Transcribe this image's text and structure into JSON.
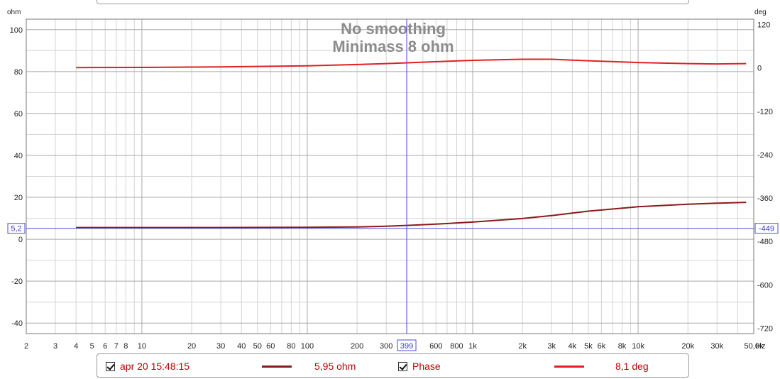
{
  "chart_data": {
    "type": "line",
    "title": "No smoothing",
    "subtitle": "Minimass 8 ohm",
    "x_scale": "log",
    "xlim": [
      2,
      50000
    ],
    "x_unit": "Hz",
    "x_ticks": [
      {
        "v": 2,
        "label": "2"
      },
      {
        "v": 3,
        "label": "3"
      },
      {
        "v": 4,
        "label": "4"
      },
      {
        "v": 5,
        "label": "5"
      },
      {
        "v": 6,
        "label": "6"
      },
      {
        "v": 7,
        "label": "7"
      },
      {
        "v": 8,
        "label": "8"
      },
      {
        "v": 10,
        "label": "10"
      },
      {
        "v": 20,
        "label": "20"
      },
      {
        "v": 30,
        "label": "30"
      },
      {
        "v": 40,
        "label": "40"
      },
      {
        "v": 50,
        "label": "50"
      },
      {
        "v": 60,
        "label": "60"
      },
      {
        "v": 80,
        "label": "80"
      },
      {
        "v": 100,
        "label": "100"
      },
      {
        "v": 200,
        "label": "200"
      },
      {
        "v": 300,
        "label": "300"
      },
      {
        "v": 600,
        "label": "600"
      },
      {
        "v": 800,
        "label": "800"
      },
      {
        "v": 1000,
        "label": "1k"
      },
      {
        "v": 2000,
        "label": "2k"
      },
      {
        "v": 3000,
        "label": "3k"
      },
      {
        "v": 4000,
        "label": "4k"
      },
      {
        "v": 5000,
        "label": "5k"
      },
      {
        "v": 6000,
        "label": "6k"
      },
      {
        "v": 8000,
        "label": "8k"
      },
      {
        "v": 10000,
        "label": "10k"
      },
      {
        "v": 20000,
        "label": "20k"
      },
      {
        "v": 30000,
        "label": "30k"
      },
      {
        "v": 50000,
        "label": "50,0k"
      }
    ],
    "y_left": {
      "unit": "ohm",
      "ylim": [
        -45,
        105
      ],
      "ticks": [
        100,
        80,
        60,
        40,
        20,
        0,
        -20,
        -40
      ]
    },
    "y_right": {
      "unit": "deg",
      "ylim": [
        -735,
        135
      ],
      "ticks": [
        120,
        0,
        -120,
        -240,
        -360,
        -480,
        -600,
        -720
      ]
    },
    "grid": true,
    "cursor": {
      "x": 399,
      "x_label": "399",
      "y_left": 5.2,
      "y_left_label": "5,2",
      "y_right_label": "-449"
    },
    "series": [
      {
        "name": "apr 20 15:48:15",
        "axis": "left",
        "color": "#8b1a1a",
        "x": [
          4,
          10,
          30,
          100,
          200,
          300,
          400,
          600,
          1000,
          2000,
          3000,
          5000,
          10000,
          20000,
          30000,
          45000
        ],
        "y": [
          5.6,
          5.6,
          5.6,
          5.7,
          5.9,
          6.2,
          6.6,
          7.2,
          8.2,
          9.9,
          11.3,
          13.4,
          15.5,
          16.7,
          17.2,
          17.6
        ]
      },
      {
        "name": "Phase",
        "axis": "right",
        "color": "#e02020",
        "x": [
          4,
          10,
          30,
          100,
          200,
          300,
          500,
          1000,
          2000,
          3000,
          5000,
          10000,
          20000,
          30000,
          45000
        ],
        "y": [
          1,
          1.5,
          3,
          6,
          9.5,
          12,
          16,
          21,
          24,
          24,
          20,
          15,
          12,
          11,
          12
        ]
      }
    ]
  },
  "legend": {
    "items": [
      {
        "name": "apr 20 15:48:15",
        "value": "5,95 ohm",
        "color": "#8b1a1a"
      },
      {
        "name": "Phase",
        "value": "8,1 deg",
        "color": "#e02020"
      }
    ]
  }
}
